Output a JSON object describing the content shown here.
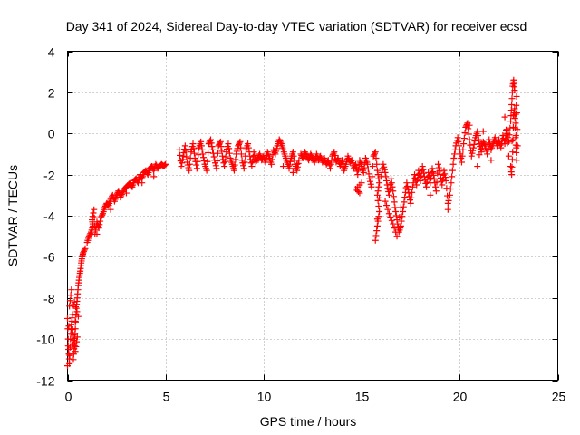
{
  "chart_data": {
    "type": "scatter",
    "title": "Day 341 of 2024, Sidereal Day-to-day VTEC variation (SDTVAR) for receiver ecsd",
    "xlabel": "GPS time / hours",
    "ylabel": "SDTVAR / TECUs",
    "xlim": [
      0,
      25
    ],
    "ylim": [
      -12,
      4
    ],
    "xticks": [
      0,
      5,
      10,
      15,
      20,
      25
    ],
    "yticks": [
      -12,
      -10,
      -8,
      -6,
      -4,
      -2,
      0,
      2,
      4
    ],
    "xtick_labels": [
      "0",
      "5",
      "10",
      "15",
      "20",
      "25"
    ],
    "ytick_labels": [
      "-12",
      "-10",
      "-8",
      "-6",
      "-4",
      "-2",
      "0",
      "2",
      "4"
    ],
    "grid": true,
    "marker": "plus",
    "series": [
      {
        "name": "SDTVAR",
        "color": "#ff0000",
        "points": [
          [
            0.0,
            -9.0
          ],
          [
            0.05,
            -10.5
          ],
          [
            0.1,
            -11.2
          ],
          [
            0.15,
            -10.0
          ],
          [
            0.2,
            -9.3
          ],
          [
            0.25,
            -8.8
          ],
          [
            0.3,
            -11.0
          ],
          [
            0.35,
            -10.2
          ],
          [
            0.4,
            -9.5
          ],
          [
            0.45,
            -8.5
          ],
          [
            0.5,
            -8.0
          ],
          [
            0.55,
            -7.4
          ],
          [
            0.6,
            -7.0
          ],
          [
            0.65,
            -6.7
          ],
          [
            0.7,
            -6.3
          ],
          [
            0.75,
            -6.0
          ],
          [
            0.8,
            -5.8
          ],
          [
            0.9,
            -5.6
          ],
          [
            0.3,
            -9.8
          ],
          [
            0.4,
            -10.6
          ],
          [
            0.5,
            -9.9
          ],
          [
            0.2,
            -7.6
          ],
          [
            0.1,
            -8.4
          ],
          [
            0.0,
            -11.3
          ],
          [
            0.35,
            -8.2
          ],
          [
            0.55,
            -8.9
          ],
          [
            1.0,
            -5.3
          ],
          [
            1.1,
            -5.0
          ],
          [
            1.2,
            -4.8
          ],
          [
            1.3,
            -4.5
          ],
          [
            1.25,
            -4.2
          ],
          [
            1.35,
            -3.7
          ],
          [
            1.4,
            -4.9
          ],
          [
            1.5,
            -4.3
          ],
          [
            1.6,
            -4.6
          ],
          [
            1.7,
            -4.1
          ],
          [
            1.8,
            -3.9
          ],
          [
            1.9,
            -3.6
          ],
          [
            2.0,
            -3.4
          ],
          [
            2.1,
            -3.5
          ],
          [
            2.2,
            -3.2
          ],
          [
            2.3,
            -3.0
          ],
          [
            2.4,
            -3.3
          ],
          [
            2.5,
            -3.0
          ],
          [
            2.6,
            -2.8
          ],
          [
            2.7,
            -3.1
          ],
          [
            2.8,
            -2.9
          ],
          [
            2.9,
            -2.7
          ],
          [
            3.0,
            -2.6
          ],
          [
            3.1,
            -2.5
          ],
          [
            3.2,
            -2.4
          ],
          [
            3.3,
            -2.6
          ],
          [
            3.4,
            -2.3
          ],
          [
            3.5,
            -2.2
          ],
          [
            3.6,
            -2.4
          ],
          [
            3.7,
            -2.0
          ],
          [
            3.8,
            -2.2
          ],
          [
            3.9,
            -1.9
          ],
          [
            4.0,
            -1.8
          ],
          [
            4.1,
            -2.0
          ],
          [
            4.2,
            -1.7
          ],
          [
            4.3,
            -1.6
          ],
          [
            4.4,
            -1.8
          ],
          [
            4.5,
            -1.5
          ],
          [
            4.6,
            -1.7
          ],
          [
            4.7,
            -1.6
          ],
          [
            4.8,
            -1.5
          ],
          [
            4.9,
            -1.6
          ],
          [
            5.0,
            -1.5
          ],
          [
            1.5,
            -4.9
          ],
          [
            2.2,
            -3.7
          ],
          [
            3.0,
            -2.9
          ],
          [
            3.8,
            -2.4
          ],
          [
            4.4,
            -2.1
          ],
          [
            5.7,
            -0.8
          ],
          [
            5.8,
            -1.6
          ],
          [
            5.9,
            -1.1
          ],
          [
            6.0,
            -0.6
          ],
          [
            6.1,
            -1.4
          ],
          [
            6.2,
            -1.8
          ],
          [
            6.3,
            -0.9
          ],
          [
            6.4,
            -0.5
          ],
          [
            6.5,
            -1.2
          ],
          [
            6.6,
            -1.7
          ],
          [
            6.7,
            -0.7
          ],
          [
            6.8,
            -0.4
          ],
          [
            6.9,
            -1.0
          ],
          [
            7.0,
            -1.5
          ],
          [
            7.1,
            -1.8
          ],
          [
            7.2,
            -0.5
          ],
          [
            7.3,
            -0.3
          ],
          [
            7.4,
            -0.8
          ],
          [
            7.5,
            -1.3
          ],
          [
            7.6,
            -1.7
          ],
          [
            7.7,
            -0.6
          ],
          [
            7.8,
            -0.4
          ],
          [
            7.9,
            -1.1
          ],
          [
            8.0,
            -1.6
          ],
          [
            8.1,
            -0.9
          ],
          [
            8.2,
            -0.5
          ],
          [
            8.3,
            -1.2
          ],
          [
            8.4,
            -1.5
          ],
          [
            8.5,
            -1.8
          ],
          [
            8.6,
            -1.0
          ],
          [
            8.7,
            -0.6
          ],
          [
            8.8,
            -0.4
          ],
          [
            8.9,
            -1.3
          ],
          [
            9.0,
            -1.7
          ],
          [
            9.1,
            -0.8
          ],
          [
            9.2,
            -0.5
          ],
          [
            9.3,
            -1.1
          ],
          [
            9.4,
            -1.6
          ],
          [
            9.5,
            -0.9
          ],
          [
            9.6,
            -1.4
          ],
          [
            9.7,
            -1.2
          ],
          [
            9.8,
            -1.0
          ],
          [
            9.9,
            -1.3
          ],
          [
            10.0,
            -1.1
          ],
          [
            10.1,
            -1.4
          ],
          [
            10.2,
            -0.9
          ],
          [
            10.3,
            -1.2
          ],
          [
            10.4,
            -1.5
          ],
          [
            10.5,
            -0.8
          ],
          [
            10.6,
            -1.0
          ],
          [
            10.7,
            -0.6
          ],
          [
            10.8,
            -0.3
          ],
          [
            10.9,
            -0.5
          ],
          [
            11.0,
            -0.8
          ],
          [
            11.1,
            -1.1
          ],
          [
            11.2,
            -1.4
          ],
          [
            11.3,
            -1.7
          ],
          [
            11.4,
            -1.2
          ],
          [
            11.5,
            -0.9
          ],
          [
            11.6,
            -1.5
          ],
          [
            11.7,
            -1.8
          ],
          [
            11.8,
            -1.3
          ],
          [
            11.5,
            -1.9
          ],
          [
            11.0,
            -1.6
          ],
          [
            11.9,
            -1.0
          ],
          [
            12.0,
            -1.2
          ],
          [
            12.1,
            -0.9
          ],
          [
            12.2,
            -1.1
          ],
          [
            12.3,
            -1.3
          ],
          [
            12.4,
            -1.0
          ],
          [
            12.5,
            -1.2
          ],
          [
            12.6,
            -1.4
          ],
          [
            12.7,
            -1.0
          ],
          [
            12.8,
            -1.3
          ],
          [
            12.9,
            -1.1
          ],
          [
            13.0,
            -1.4
          ],
          [
            13.1,
            -1.2
          ],
          [
            13.2,
            -1.5
          ],
          [
            13.3,
            -1.3
          ],
          [
            13.4,
            -1.7
          ],
          [
            13.5,
            -1.1
          ],
          [
            13.6,
            -0.9
          ],
          [
            13.7,
            -1.4
          ],
          [
            13.8,
            -1.2
          ],
          [
            13.9,
            -1.6
          ],
          [
            14.0,
            -1.3
          ],
          [
            14.1,
            -1.8
          ],
          [
            14.2,
            -1.5
          ],
          [
            14.3,
            -1.1
          ],
          [
            14.4,
            -1.4
          ],
          [
            14.5,
            -1.3
          ],
          [
            14.6,
            -1.7
          ],
          [
            14.7,
            -1.5
          ],
          [
            14.8,
            -2.0
          ],
          [
            14.9,
            -1.3
          ],
          [
            15.0,
            -1.6
          ],
          [
            15.1,
            -1.9
          ],
          [
            15.2,
            -1.2
          ],
          [
            15.3,
            -1.5
          ],
          [
            15.4,
            -2.2
          ],
          [
            15.5,
            -2.6
          ],
          [
            15.6,
            -1.1
          ],
          [
            15.7,
            -0.9
          ],
          [
            15.8,
            -1.8
          ],
          [
            15.9,
            -2.4
          ],
          [
            15.8,
            -3.0
          ],
          [
            15.9,
            -3.8
          ],
          [
            15.8,
            -4.5
          ],
          [
            15.7,
            -5.2
          ],
          [
            16.0,
            -2.1
          ],
          [
            16.1,
            -1.5
          ],
          [
            16.2,
            -1.9
          ],
          [
            16.3,
            -2.5
          ],
          [
            16.4,
            -3.0
          ],
          [
            16.5,
            -2.2
          ],
          [
            16.6,
            -2.8
          ],
          [
            16.7,
            -3.6
          ],
          [
            16.8,
            -4.2
          ],
          [
            16.9,
            -4.8
          ],
          [
            17.0,
            -4.5
          ],
          [
            17.1,
            -3.8
          ],
          [
            17.2,
            -3.1
          ],
          [
            17.3,
            -2.4
          ],
          [
            17.4,
            -2.9
          ],
          [
            17.5,
            -3.4
          ],
          [
            17.6,
            -2.6
          ],
          [
            17.7,
            -2.0
          ],
          [
            17.8,
            -2.5
          ],
          [
            17.9,
            -1.8
          ],
          [
            18.0,
            -2.3
          ],
          [
            18.1,
            -1.6
          ],
          [
            18.2,
            -2.1
          ],
          [
            18.3,
            -2.6
          ],
          [
            18.4,
            -1.9
          ],
          [
            18.5,
            -2.4
          ],
          [
            18.6,
            -1.7
          ],
          [
            18.7,
            -2.2
          ],
          [
            18.8,
            -2.8
          ],
          [
            18.9,
            -1.5
          ],
          [
            19.0,
            -2.0
          ],
          [
            19.1,
            -2.5
          ],
          [
            19.2,
            -1.8
          ],
          [
            19.3,
            -2.3
          ],
          [
            19.4,
            -3.4
          ],
          [
            19.5,
            -3.0
          ],
          [
            19.6,
            -2.1
          ],
          [
            19.7,
            -1.2
          ],
          [
            19.8,
            -0.6
          ],
          [
            19.9,
            -0.2
          ],
          [
            20.0,
            -0.8
          ],
          [
            20.1,
            -1.4
          ],
          [
            20.2,
            -0.5
          ],
          [
            20.3,
            0.3
          ],
          [
            20.4,
            0.5
          ],
          [
            20.5,
            -0.3
          ],
          [
            20.6,
            -1.1
          ],
          [
            20.7,
            -0.7
          ],
          [
            20.8,
            -0.2
          ],
          [
            20.9,
            0.1
          ],
          [
            21.0,
            -0.5
          ],
          [
            21.1,
            -0.9
          ],
          [
            21.2,
            -0.4
          ],
          [
            21.3,
            -0.6
          ],
          [
            21.4,
            -1.0
          ],
          [
            21.5,
            -0.3
          ],
          [
            21.6,
            -0.8
          ],
          [
            21.7,
            -0.5
          ],
          [
            21.8,
            -0.2
          ],
          [
            21.9,
            -0.6
          ],
          [
            22.0,
            -0.3
          ],
          [
            22.1,
            -0.7
          ],
          [
            22.2,
            -0.1
          ],
          [
            22.3,
            -0.5
          ],
          [
            22.4,
            0.2
          ],
          [
            22.5,
            -0.4
          ],
          [
            22.6,
            0.6
          ],
          [
            22.65,
            1.4
          ],
          [
            22.7,
            2.3
          ],
          [
            22.75,
            2.6
          ],
          [
            22.8,
            2.1
          ],
          [
            22.6,
            -1.6
          ],
          [
            22.65,
            -2.0
          ],
          [
            22.7,
            -0.9
          ],
          [
            22.75,
            0.9
          ],
          [
            22.8,
            1.2
          ],
          [
            22.85,
            -0.2
          ],
          [
            22.9,
            -1.3
          ],
          [
            22.85,
            0.5
          ],
          [
            22.9,
            1.8
          ],
          [
            22.95,
            -0.6
          ],
          [
            16.2,
            -3.3
          ],
          [
            16.4,
            -3.9
          ],
          [
            16.6,
            -4.4
          ],
          [
            16.8,
            -5.0
          ],
          [
            17.0,
            -3.6
          ],
          [
            15.0,
            -2.4
          ],
          [
            14.7,
            -2.7
          ],
          [
            14.9,
            -2.9
          ],
          [
            18.5,
            -3.0
          ],
          [
            19.4,
            -3.7
          ],
          [
            20.5,
            0.4
          ],
          [
            21.2,
            0.1
          ],
          [
            20.9,
            -1.6
          ],
          [
            21.6,
            -1.3
          ],
          [
            22.3,
            0.8
          ],
          [
            22.5,
            -1.1
          ]
        ]
      }
    ]
  }
}
